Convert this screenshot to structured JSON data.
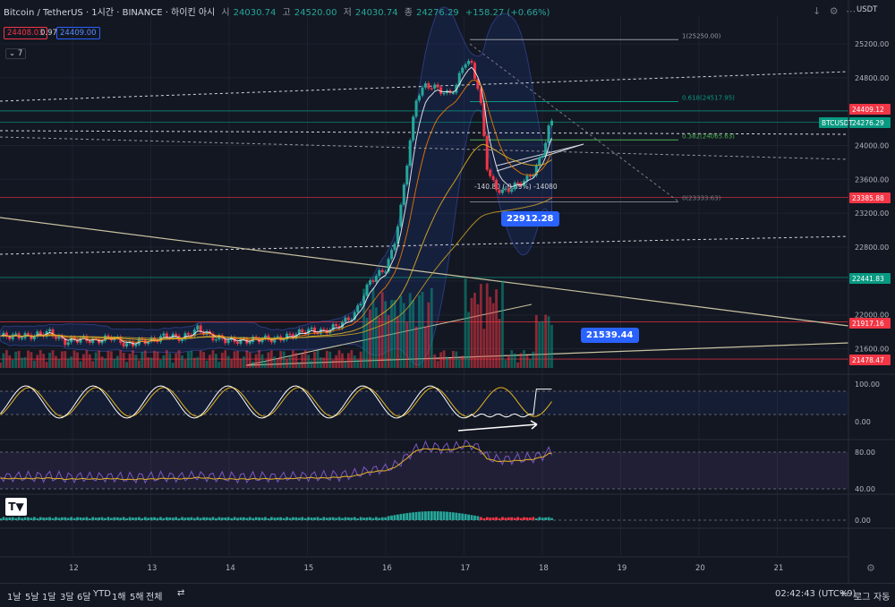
{
  "header": {
    "symbol": "Bitcoin / TetherUS · 1시간 · BINANCE · 하이킨 아시",
    "o_label": "시",
    "o_val": "24030.74",
    "h_label": "고",
    "h_val": "24520.00",
    "l_label": "저",
    "l_val": "24030.74",
    "c_label": "종",
    "c_val": "24276.29",
    "change": "+158.27 (+0.66%)",
    "sell_price": "24408.03",
    "spread": "0.97",
    "buy_price": "24409.00",
    "indicator_count": "7",
    "currency": "USDT"
  },
  "price_axis": {
    "ticks": [
      "25200.00",
      "24800.00",
      "24400.00",
      "24000.00",
      "23600.00",
      "23200.00",
      "22800.00",
      "22400.00",
      "22000.00",
      "21600.00"
    ],
    "labels": [
      {
        "text": "24409.12",
        "color": "#f23645"
      },
      {
        "text": "24276.29",
        "color": "#089981"
      },
      {
        "text": "BTCUSDT",
        "color": "#089981"
      },
      {
        "text": "23385.88",
        "color": "#f23645"
      },
      {
        "text": "22441.83",
        "color": "#089981"
      },
      {
        "text": "21917.16",
        "color": "#f23645"
      },
      {
        "text": "21478.47",
        "color": "#f23645"
      }
    ]
  },
  "fib": [
    {
      "label": "1(25250.00)"
    },
    {
      "label": "0.618(24517.95)"
    },
    {
      "label": "0.382(24065.63)"
    },
    {
      "label": "0(23333.63)"
    }
  ],
  "measure_label": "-140.80 (-0.59%) -14080",
  "callouts": {
    "c1": "22912.28",
    "c2": "21539.44"
  },
  "stoch_axis": [
    "100.00",
    "0.00"
  ],
  "rsi_axis": [
    "80.00",
    "40.00"
  ],
  "macd_axis": [
    "0.00"
  ],
  "time_axis": [
    "12",
    "13",
    "14",
    "15",
    "16",
    "17",
    "18",
    "19",
    "20",
    "21"
  ],
  "bottom_bar": {
    "timeframes": [
      "1날",
      "5날",
      "1달",
      "3달",
      "6달",
      "YTD",
      "1해",
      "5해",
      "전체"
    ],
    "clock": "02:42:43 (UTC+9)",
    "percent": "%",
    "log": "로그",
    "auto": "자동"
  },
  "chart_data": {
    "type": "candlestick",
    "symbol": "BTCUSDT",
    "style": "heikin-ashi",
    "interval": "1h",
    "x": [
      "12",
      "13",
      "14",
      "15",
      "16",
      "17",
      "18",
      "19",
      "20",
      "21"
    ],
    "ylim": [
      21500,
      25300
    ],
    "close_path": [
      [
        11.5,
        21750
      ],
      [
        11.7,
        21800
      ],
      [
        11.9,
        21680
      ],
      [
        12.1,
        21720
      ],
      [
        12.3,
        21690
      ],
      [
        12.5,
        21740
      ],
      [
        12.7,
        21640
      ],
      [
        12.9,
        21700
      ],
      [
        13.0,
        21690
      ],
      [
        13.2,
        21760
      ],
      [
        13.4,
        21720
      ],
      [
        13.6,
        21840
      ],
      [
        13.8,
        21730
      ],
      [
        14.0,
        21700
      ],
      [
        14.2,
        21690
      ],
      [
        14.4,
        21720
      ],
      [
        14.6,
        21710
      ],
      [
        14.8,
        21760
      ],
      [
        15.0,
        21820
      ],
      [
        15.2,
        21800
      ],
      [
        15.4,
        21880
      ],
      [
        15.6,
        22000
      ],
      [
        15.8,
        22400
      ],
      [
        16.0,
        22550
      ],
      [
        16.1,
        22800
      ],
      [
        16.2,
        23300
      ],
      [
        16.3,
        24000
      ],
      [
        16.4,
        24600
      ],
      [
        16.5,
        24700
      ],
      [
        16.6,
        24700
      ],
      [
        16.7,
        24650
      ],
      [
        16.8,
        24600
      ],
      [
        16.9,
        24700
      ],
      [
        17.0,
        25000
      ],
      [
        17.1,
        24950
      ],
      [
        17.2,
        24600
      ],
      [
        17.3,
        23700
      ],
      [
        17.4,
        23500
      ],
      [
        17.5,
        23450
      ],
      [
        17.6,
        23500
      ],
      [
        17.7,
        23550
      ],
      [
        17.8,
        23600
      ],
      [
        17.9,
        23700
      ],
      [
        18.0,
        23900
      ],
      [
        18.1,
        24276
      ]
    ],
    "fib_levels": [
      {
        "ratio": 1,
        "price": 25250.0
      },
      {
        "ratio": 0.618,
        "price": 24517.95
      },
      {
        "ratio": 0.382,
        "price": 24065.63
      },
      {
        "ratio": 0,
        "price": 23333.63
      }
    ],
    "horizontal_levels": [
      24409.12,
      24276.29,
      23385.88,
      22441.83,
      21917.16,
      21478.47
    ],
    "callouts": [
      22912.28,
      21539.44
    ],
    "indicators": [
      "Bollinger Bands",
      "EMA",
      "Stochastic RSI",
      "RSI",
      "MACD"
    ]
  }
}
